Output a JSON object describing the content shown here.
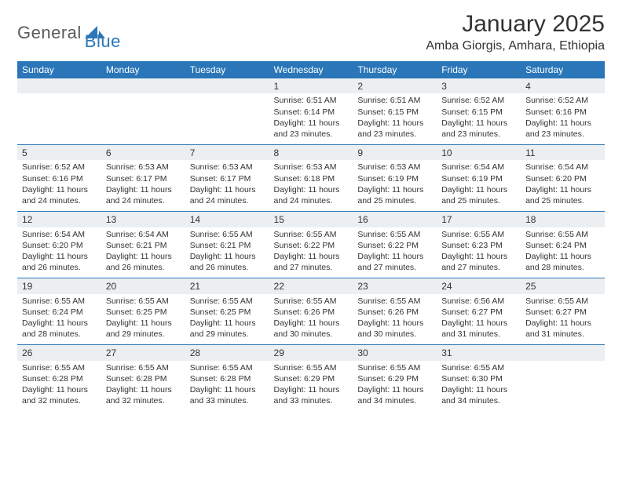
{
  "brand": {
    "part1": "General",
    "part2": "Blue"
  },
  "title": "January 2025",
  "location": "Amba Giorgis, Amhara, Ethiopia",
  "colors": {
    "accent": "#2a76b8",
    "header_text": "#ffffff",
    "day_bg": "#eceff1",
    "body_text": "#333333",
    "background": "#ffffff",
    "logo_gray": "#5b5b5b"
  },
  "fonts": {
    "title_size": 30,
    "location_size": 16,
    "header_size": 12,
    "daynum_size": 12,
    "detail_size": 10.5
  },
  "headers": [
    "Sunday",
    "Monday",
    "Tuesday",
    "Wednesday",
    "Thursday",
    "Friday",
    "Saturday"
  ],
  "weeks": [
    [
      null,
      null,
      null,
      {
        "n": "1",
        "sr": "6:51 AM",
        "ss": "6:14 PM",
        "dl": "11 hours and 23 minutes."
      },
      {
        "n": "2",
        "sr": "6:51 AM",
        "ss": "6:15 PM",
        "dl": "11 hours and 23 minutes."
      },
      {
        "n": "3",
        "sr": "6:52 AM",
        "ss": "6:15 PM",
        "dl": "11 hours and 23 minutes."
      },
      {
        "n": "4",
        "sr": "6:52 AM",
        "ss": "6:16 PM",
        "dl": "11 hours and 23 minutes."
      }
    ],
    [
      {
        "n": "5",
        "sr": "6:52 AM",
        "ss": "6:16 PM",
        "dl": "11 hours and 24 minutes."
      },
      {
        "n": "6",
        "sr": "6:53 AM",
        "ss": "6:17 PM",
        "dl": "11 hours and 24 minutes."
      },
      {
        "n": "7",
        "sr": "6:53 AM",
        "ss": "6:17 PM",
        "dl": "11 hours and 24 minutes."
      },
      {
        "n": "8",
        "sr": "6:53 AM",
        "ss": "6:18 PM",
        "dl": "11 hours and 24 minutes."
      },
      {
        "n": "9",
        "sr": "6:53 AM",
        "ss": "6:19 PM",
        "dl": "11 hours and 25 minutes."
      },
      {
        "n": "10",
        "sr": "6:54 AM",
        "ss": "6:19 PM",
        "dl": "11 hours and 25 minutes."
      },
      {
        "n": "11",
        "sr": "6:54 AM",
        "ss": "6:20 PM",
        "dl": "11 hours and 25 minutes."
      }
    ],
    [
      {
        "n": "12",
        "sr": "6:54 AM",
        "ss": "6:20 PM",
        "dl": "11 hours and 26 minutes."
      },
      {
        "n": "13",
        "sr": "6:54 AM",
        "ss": "6:21 PM",
        "dl": "11 hours and 26 minutes."
      },
      {
        "n": "14",
        "sr": "6:55 AM",
        "ss": "6:21 PM",
        "dl": "11 hours and 26 minutes."
      },
      {
        "n": "15",
        "sr": "6:55 AM",
        "ss": "6:22 PM",
        "dl": "11 hours and 27 minutes."
      },
      {
        "n": "16",
        "sr": "6:55 AM",
        "ss": "6:22 PM",
        "dl": "11 hours and 27 minutes."
      },
      {
        "n": "17",
        "sr": "6:55 AM",
        "ss": "6:23 PM",
        "dl": "11 hours and 27 minutes."
      },
      {
        "n": "18",
        "sr": "6:55 AM",
        "ss": "6:24 PM",
        "dl": "11 hours and 28 minutes."
      }
    ],
    [
      {
        "n": "19",
        "sr": "6:55 AM",
        "ss": "6:24 PM",
        "dl": "11 hours and 28 minutes."
      },
      {
        "n": "20",
        "sr": "6:55 AM",
        "ss": "6:25 PM",
        "dl": "11 hours and 29 minutes."
      },
      {
        "n": "21",
        "sr": "6:55 AM",
        "ss": "6:25 PM",
        "dl": "11 hours and 29 minutes."
      },
      {
        "n": "22",
        "sr": "6:55 AM",
        "ss": "6:26 PM",
        "dl": "11 hours and 30 minutes."
      },
      {
        "n": "23",
        "sr": "6:55 AM",
        "ss": "6:26 PM",
        "dl": "11 hours and 30 minutes."
      },
      {
        "n": "24",
        "sr": "6:56 AM",
        "ss": "6:27 PM",
        "dl": "11 hours and 31 minutes."
      },
      {
        "n": "25",
        "sr": "6:55 AM",
        "ss": "6:27 PM",
        "dl": "11 hours and 31 minutes."
      }
    ],
    [
      {
        "n": "26",
        "sr": "6:55 AM",
        "ss": "6:28 PM",
        "dl": "11 hours and 32 minutes."
      },
      {
        "n": "27",
        "sr": "6:55 AM",
        "ss": "6:28 PM",
        "dl": "11 hours and 32 minutes."
      },
      {
        "n": "28",
        "sr": "6:55 AM",
        "ss": "6:28 PM",
        "dl": "11 hours and 33 minutes."
      },
      {
        "n": "29",
        "sr": "6:55 AM",
        "ss": "6:29 PM",
        "dl": "11 hours and 33 minutes."
      },
      {
        "n": "30",
        "sr": "6:55 AM",
        "ss": "6:29 PM",
        "dl": "11 hours and 34 minutes."
      },
      {
        "n": "31",
        "sr": "6:55 AM",
        "ss": "6:30 PM",
        "dl": "11 hours and 34 minutes."
      },
      null
    ]
  ],
  "labels": {
    "sunrise": "Sunrise:",
    "sunset": "Sunset:",
    "daylight": "Daylight:"
  }
}
